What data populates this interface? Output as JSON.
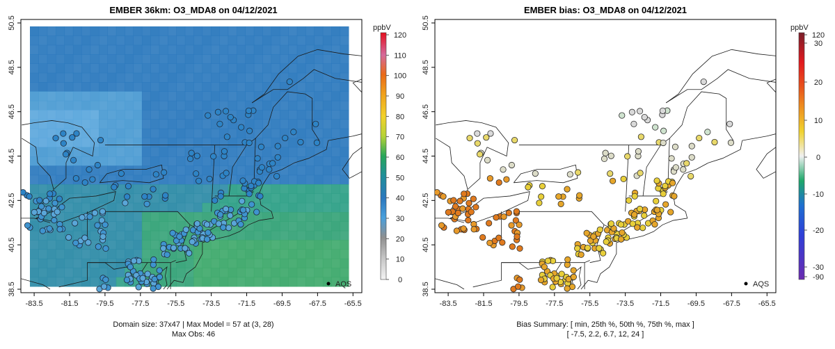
{
  "chart_data": [
    {
      "type": "map",
      "title": "EMBER 36km: O3_MDA8 on 04/12/2021",
      "x_ticks": [
        "-83.5",
        "-81.5",
        "-79.5",
        "-77.5",
        "-75.5",
        "-73.5",
        "-71.5",
        "-69.5",
        "-67.5",
        "-65.5"
      ],
      "y_ticks": [
        "38.5",
        "40.5",
        "42.5",
        "44.5",
        "46.5",
        "48.5",
        "50.5"
      ],
      "xlim": [
        -84.2,
        -65.0
      ],
      "ylim": [
        38.5,
        50.5
      ],
      "colorbar": {
        "unit": "ppbV",
        "ticks": [
          "0",
          "10",
          "20",
          "30",
          "40",
          "50",
          "60",
          "70",
          "80",
          "90",
          "100",
          "110",
          "120"
        ],
        "range": [
          0,
          120
        ]
      },
      "legend": "AQS",
      "footer_line1": "Domain size: 37x47 | Max Model = 57 at (3, 28)",
      "footer_line2": "Max Obs: 46"
    },
    {
      "type": "map",
      "title": "EMBER bias: O3_MDA8 on 04/12/2021",
      "x_ticks": [
        "-83.5",
        "-81.5",
        "-79.5",
        "-77.5",
        "-75.5",
        "-73.5",
        "-71.5",
        "-69.5",
        "-67.5",
        "-65.5"
      ],
      "y_ticks": [
        "38.5",
        "40.5",
        "42.5",
        "44.5",
        "46.5",
        "48.5",
        "50.5"
      ],
      "xlim": [
        -84.2,
        -65.0
      ],
      "ylim": [
        38.5,
        50.5
      ],
      "colorbar": {
        "unit": "ppbV",
        "ticks": [
          "120",
          "30",
          "20",
          "10",
          "0",
          "-10",
          "-20",
          "-30",
          "-90"
        ],
        "range": [
          -90,
          120
        ]
      },
      "legend": "AQS",
      "footer_line1": "Bias Summary: [ min, 25th %, 50th %, 75th %, max ]",
      "footer_line2": "[ -7.5,   2.2,   6.7,   12,   24 ]",
      "bias_summary": {
        "min": -7.5,
        "p25": 2.2,
        "p50": 6.7,
        "p75": 12,
        "max": 24
      }
    }
  ],
  "colors": {
    "model_field": "#2a78bd",
    "model_field_south": "#2fa07f",
    "obs_light_blue": "#5aa6d8",
    "bias_orange": "#e07a1e",
    "bias_yellow": "#e8cf3a"
  }
}
